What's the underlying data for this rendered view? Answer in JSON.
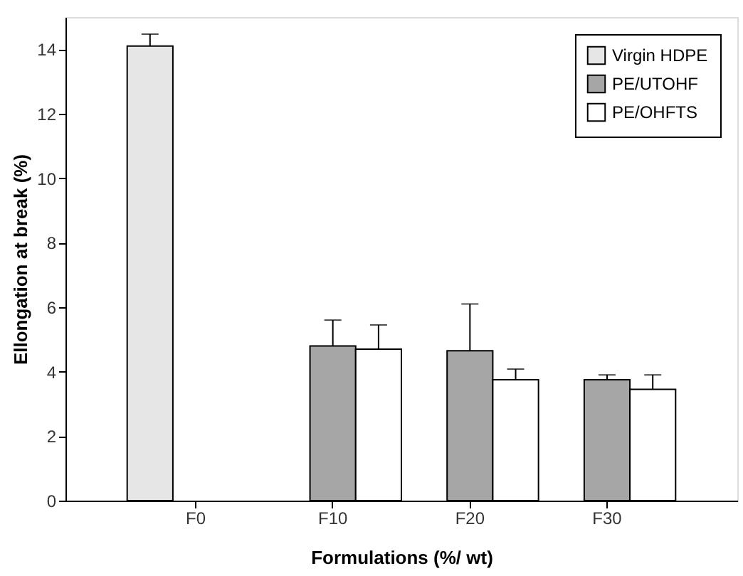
{
  "chart_data": {
    "type": "bar",
    "xlabel": "Formulations (%/ wt)",
    "ylabel": "Ellongation at break (%)",
    "categories": [
      "F0",
      "F10",
      "F20",
      "F30"
    ],
    "series": [
      {
        "name": "Virgin HDPE",
        "color": "#e6e6e6",
        "values": [
          14.1,
          null,
          null,
          null
        ],
        "errors": [
          [
            14.1,
            14.47
          ],
          null,
          null,
          null
        ]
      },
      {
        "name": "PE/UTOHF",
        "color": "#a6a6a6",
        "values": [
          null,
          4.8,
          4.65,
          3.75
        ],
        "errors": [
          null,
          [
            4.8,
            5.6
          ],
          [
            4.65,
            6.1
          ],
          [
            3.75,
            3.9
          ]
        ]
      },
      {
        "name": "PE/OHFTS",
        "color": "#ffffff",
        "values": [
          null,
          4.7,
          3.75,
          3.45
        ],
        "errors": [
          null,
          [
            4.7,
            5.45
          ],
          [
            3.75,
            4.08
          ],
          [
            3.45,
            3.9
          ]
        ]
      }
    ],
    "ylim": [
      0,
      15
    ],
    "yticks": [
      0,
      2,
      4,
      6,
      8,
      10,
      12,
      14
    ],
    "grid": false,
    "legend": "top right"
  }
}
